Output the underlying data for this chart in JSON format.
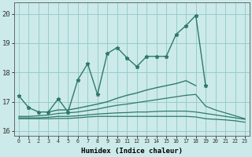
{
  "xlabel": "Humidex (Indice chaleur)",
  "x": [
    0,
    1,
    2,
    3,
    4,
    5,
    6,
    7,
    8,
    9,
    10,
    11,
    12,
    13,
    14,
    15,
    16,
    17,
    18,
    19,
    20,
    21,
    22,
    23
  ],
  "line_max": [
    17.2,
    16.8,
    null,
    null,
    17.1,
    16.65,
    17.75,
    18.3,
    17.25,
    18.65,
    18.85,
    18.5,
    18.2,
    18.55,
    18.55,
    null,
    19.3,
    19.6,
    19.95,
    null,
    null,
    null,
    null,
    null
  ],
  "line_upper": [
    17.2,
    16.8,
    16.65,
    16.65,
    17.1,
    16.65,
    17.75,
    18.3,
    17.25,
    18.65,
    18.85,
    18.5,
    18.2,
    18.55,
    18.55,
    18.55,
    19.3,
    19.6,
    19.95,
    17.55,
    null,
    null,
    null,
    null
  ],
  "line_mid": [
    16.5,
    null,
    null,
    16.65,
    16.72,
    16.72,
    16.78,
    16.85,
    16.92,
    17.0,
    17.12,
    17.22,
    17.3,
    17.4,
    17.48,
    17.55,
    17.62,
    17.72,
    17.55,
    null,
    null,
    null,
    null,
    null
  ],
  "line_mean": [
    16.5,
    16.5,
    16.52,
    16.55,
    16.6,
    16.62,
    16.65,
    16.7,
    16.75,
    16.82,
    16.88,
    16.92,
    16.97,
    17.02,
    17.07,
    17.12,
    17.17,
    17.22,
    17.25,
    16.85,
    16.72,
    16.62,
    16.52,
    16.42
  ],
  "line_min1": [
    16.45,
    16.45,
    16.45,
    16.47,
    16.5,
    16.5,
    16.52,
    16.55,
    16.58,
    16.6,
    16.62,
    16.63,
    16.65,
    16.65,
    16.67,
    16.68,
    16.68,
    16.68,
    16.65,
    16.6,
    16.55,
    16.5,
    16.45,
    16.4
  ],
  "line_min2": [
    16.42,
    16.42,
    16.42,
    16.42,
    16.43,
    16.43,
    16.45,
    16.48,
    16.5,
    16.5,
    16.5,
    16.5,
    16.5,
    16.5,
    16.5,
    16.5,
    16.5,
    16.5,
    16.48,
    16.42,
    16.4,
    16.38,
    16.35,
    16.3
  ],
  "line_color": "#2d7a6a",
  "bg_color": "#cceaea",
  "grid_color": "#99cccc",
  "ylim_min": 15.85,
  "ylim_max": 20.4,
  "yticks": [
    16,
    17,
    18,
    19,
    20
  ],
  "xticks": [
    0,
    1,
    2,
    3,
    4,
    5,
    6,
    7,
    8,
    9,
    10,
    11,
    12,
    13,
    14,
    15,
    16,
    17,
    18,
    19,
    20,
    21,
    22,
    23
  ]
}
